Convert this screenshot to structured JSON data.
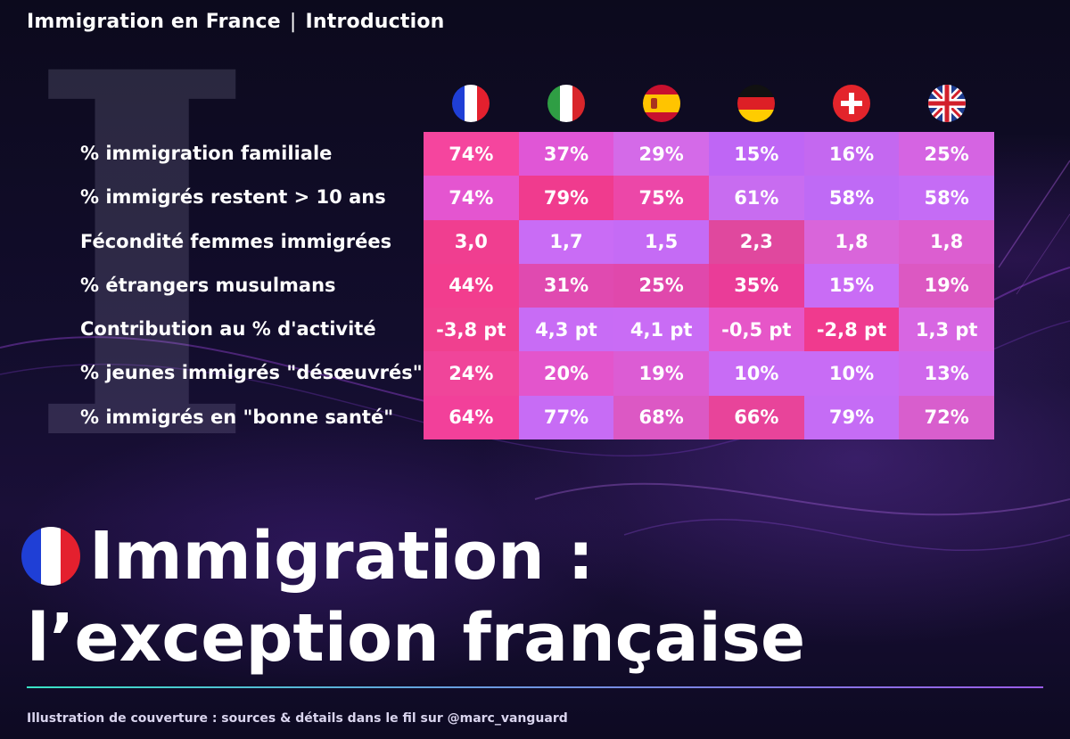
{
  "header": {
    "section": "Immigration en France",
    "separator": "|",
    "subsection": "Introduction"
  },
  "decor_letter": "I",
  "countries": [
    {
      "flag": "france-flag-icon"
    },
    {
      "flag": "italy-flag-icon"
    },
    {
      "flag": "spain-flag-icon"
    },
    {
      "flag": "germany-flag-icon"
    },
    {
      "flag": "switzerland-flag-icon"
    },
    {
      "flag": "uk-flag-icon"
    }
  ],
  "rows": [
    {
      "label": "% immigration familiale",
      "values": [
        "74%",
        "37%",
        "29%",
        "15%",
        "16%",
        "25%"
      ],
      "colors": [
        "#f5459e",
        "#e056d6",
        "#d46ae8",
        "#bf66f5",
        "#c468f0",
        "#d564e2"
      ]
    },
    {
      "label": "% immigrés restent > 10 ans",
      "values": [
        "74%",
        "79%",
        "75%",
        "61%",
        "58%",
        "58%"
      ],
      "colors": [
        "#e455d0",
        "#f03b8e",
        "#ec47a8",
        "#c86cf0",
        "#bf6af5",
        "#c56cf5"
      ]
    },
    {
      "label": "Fécondité femmes immigrées",
      "values": [
        "3,0",
        "1,7",
        "1,5",
        "2,3",
        "1,8",
        "1,8"
      ],
      "colors": [
        "#f03e90",
        "#c96cf5",
        "#c56bf5",
        "#e0489e",
        "#d965da",
        "#dc5ed0"
      ]
    },
    {
      "label": "% étrangers musulmans",
      "values": [
        "44%",
        "31%",
        "25%",
        "35%",
        "15%",
        "19%"
      ],
      "colors": [
        "#f23d8e",
        "#e04ab0",
        "#e048ac",
        "#ea3c98",
        "#c96cf5",
        "#dc58c2"
      ]
    },
    {
      "label": "Contribution au % d'activité",
      "values": [
        "-3,8 pt",
        "4,3 pt",
        "4,1 pt",
        "-0,5 pt",
        "-2,8 pt",
        "1,3 pt"
      ],
      "colors": [
        "#f0408f",
        "#c86cf5",
        "#c96cf5",
        "#e656c8",
        "#f03a8e",
        "#d766e2"
      ]
    },
    {
      "label": "% jeunes immigrés \"désœuvrés\"",
      "values": [
        "24%",
        "20%",
        "19%",
        "10%",
        "10%",
        "13%"
      ],
      "colors": [
        "#f0459a",
        "#e355cc",
        "#dc5cd4",
        "#c86cf5",
        "#c86cf5",
        "#cf68ec"
      ]
    },
    {
      "label": "% immigrés en \"bonne santé\"",
      "values": [
        "64%",
        "77%",
        "68%",
        "66%",
        "79%",
        "72%"
      ],
      "colors": [
        "#f2409a",
        "#c76cf5",
        "#dc58c4",
        "#e8449a",
        "#c56cf5",
        "#d85ecd"
      ]
    }
  ],
  "title": {
    "line1": "Immigration :",
    "line2": "l’exception française",
    "flag": "france-flag-icon"
  },
  "footer": "Illustration de couverture : sources & détails dans le fil sur @marc_vanguard"
}
